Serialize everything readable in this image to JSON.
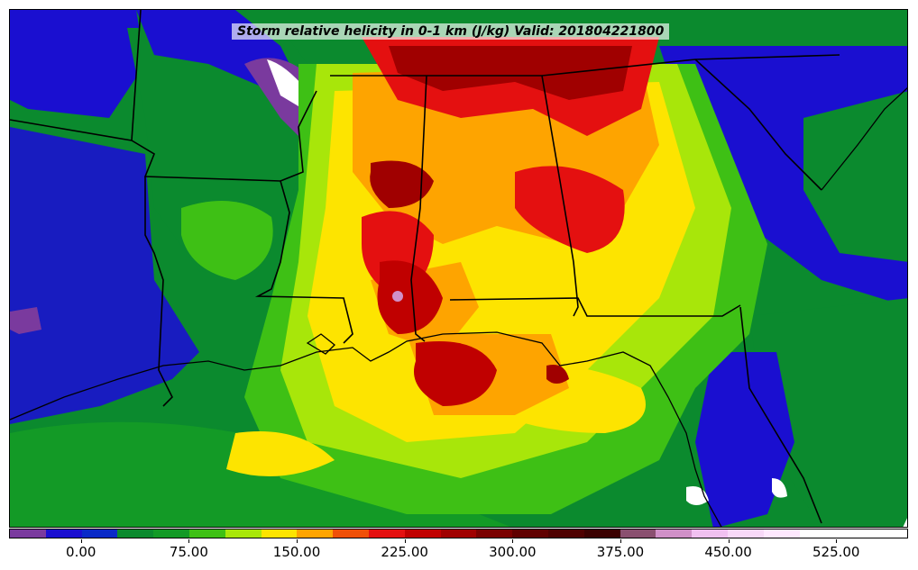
{
  "map": {
    "title": "Storm relative helicity in 0-1 km (J/kg) Valid: 201804221800",
    "variable": "Storm relative helicity",
    "layer": "0-1 km",
    "units": "J/kg",
    "valid_time": "201804221800"
  },
  "colorbar": {
    "min": -50,
    "max": 575,
    "step": 25,
    "colors": [
      "#7a3a9e",
      "#1a0fd0",
      "#0a2ac8",
      "#0b8a2e",
      "#139a26",
      "#3ec015",
      "#a8e60a",
      "#fde400",
      "#fea400",
      "#f05008",
      "#e41010",
      "#c00000",
      "#a00000",
      "#7a0000",
      "#600000",
      "#4e0000",
      "#3a0000",
      "#8a5070",
      "#d090c8",
      "#f0c0f0",
      "#f8d8f8",
      "#ffe8ff",
      "#ffffff",
      "#ffffff",
      "#ffffff"
    ],
    "tick_labels": [
      "0.00",
      "75.00",
      "150.00",
      "225.00",
      "300.00",
      "375.00",
      "450.00",
      "525.00"
    ],
    "tick_values": [
      0,
      75,
      150,
      225,
      300,
      375,
      450,
      525
    ]
  }
}
